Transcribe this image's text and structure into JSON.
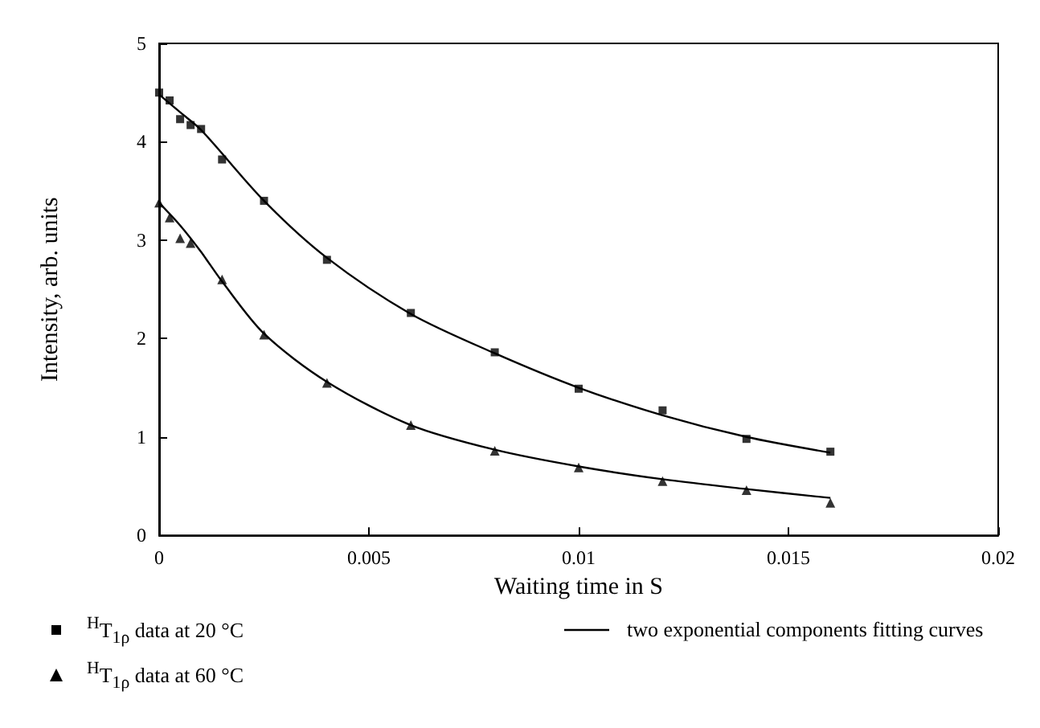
{
  "chart_data": {
    "type": "scatter",
    "xlabel": "Waiting time in S",
    "ylabel": "Intensity, arb. units",
    "xlim": [
      0,
      0.02
    ],
    "xticks": [
      0,
      0.005,
      0.01,
      0.015,
      0.02
    ],
    "ylim": [
      0,
      5
    ],
    "yticks": [
      0,
      1,
      2,
      3,
      4,
      5
    ],
    "grid": false,
    "legend": "bottom",
    "series": [
      {
        "name": "$^{H}$T$_{1ρ}$ data at 20 °C",
        "marker": "square",
        "color": "#000000",
        "x": [
          0,
          0.00025,
          0.0005,
          0.00075,
          0.001,
          0.0015,
          0.0025,
          0.004,
          0.006,
          0.008,
          0.01,
          0.012,
          0.014,
          0.016
        ],
        "values": [
          4.5,
          4.42,
          4.23,
          4.17,
          4.13,
          3.82,
          3.4,
          2.8,
          2.26,
          1.86,
          1.49,
          1.27,
          0.98,
          0.85
        ]
      },
      {
        "name": "$^{H}$T$_{1ρ}$ data at 60 °C",
        "marker": "triangle",
        "color": "#000000",
        "x": [
          0,
          0.00025,
          0.0005,
          0.00075,
          0.0015,
          0.0025,
          0.004,
          0.006,
          0.008,
          0.01,
          0.012,
          0.014,
          0.016
        ],
        "values": [
          3.38,
          3.23,
          3.02,
          2.97,
          2.6,
          2.04,
          1.55,
          1.12,
          0.86,
          0.69,
          0.55,
          0.46,
          0.33
        ]
      },
      {
        "name": "two exponential components fitting curves",
        "type": "line",
        "marker": "none",
        "line_style": "solid",
        "color": "#000000",
        "x": [
          0,
          0.0005,
          0.001,
          0.0025,
          0.004,
          0.006,
          0.008,
          0.01,
          0.012,
          0.014,
          0.016
        ],
        "values": [
          4.48,
          4.3,
          4.12,
          3.4,
          2.82,
          2.25,
          1.85,
          1.5,
          1.22,
          1.0,
          0.84
        ]
      },
      {
        "type": "line",
        "marker": "none",
        "line_style": "solid",
        "color": "#000000",
        "x": [
          0,
          0.0005,
          0.001,
          0.0015,
          0.0025,
          0.004,
          0.006,
          0.008,
          0.01,
          0.012,
          0.014,
          0.016
        ],
        "values": [
          3.38,
          3.15,
          2.88,
          2.58,
          2.05,
          1.56,
          1.12,
          0.87,
          0.7,
          0.57,
          0.47,
          0.38
        ]
      }
    ]
  }
}
